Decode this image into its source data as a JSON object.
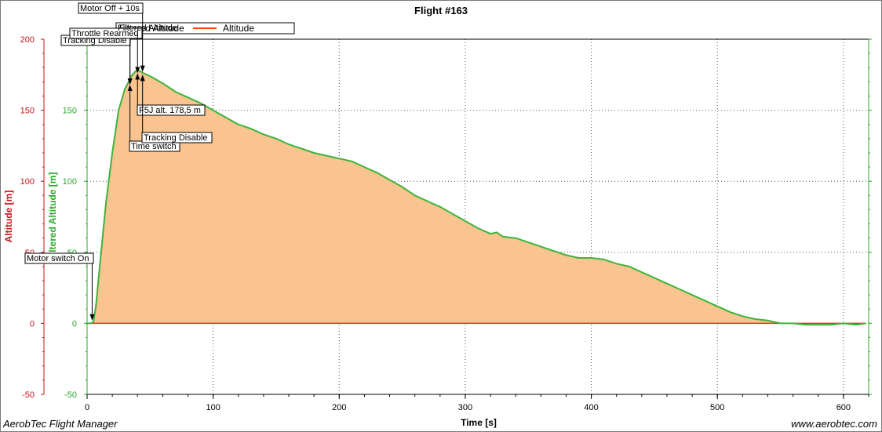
{
  "footer": {
    "left": "AerobTec Flight Manager",
    "right": "www.aerobtec.com"
  },
  "chart_data": {
    "type": "area",
    "title": "Flight #163",
    "xlabel": "Time [s]",
    "y_left_label": "Altitude [m]",
    "y_right_label": "Filtered Altitude [m]",
    "xlim": [
      0,
      620
    ],
    "ylim": [
      -50,
      200
    ],
    "x_ticks": [
      0,
      100,
      200,
      300,
      400,
      500,
      600
    ],
    "y_ticks": [
      -50,
      0,
      50,
      100,
      150,
      200
    ],
    "grid": true,
    "legend": {
      "placement": "top-left",
      "entries": [
        {
          "label": "Filtered Altitude",
          "color": "#3cb43c"
        },
        {
          "label": "Altitude",
          "color": "#ff4a00"
        }
      ]
    },
    "colors": {
      "fill": "#f9c48f",
      "filtered_line": "#3cb43c",
      "zero_line": "#e03020",
      "left_axis": "#c8141e",
      "right_axis": "#2ea82e"
    },
    "series": [
      {
        "name": "Filtered Altitude",
        "x": [
          0,
          3,
          5,
          7,
          10,
          15,
          20,
          25,
          30,
          33,
          35,
          38,
          40,
          43,
          45,
          50,
          60,
          70,
          80,
          90,
          100,
          110,
          120,
          130,
          140,
          150,
          160,
          170,
          180,
          190,
          200,
          210,
          220,
          230,
          240,
          250,
          260,
          270,
          280,
          290,
          300,
          310,
          320,
          325,
          330,
          340,
          350,
          360,
          370,
          380,
          390,
          400,
          410,
          420,
          430,
          440,
          450,
          460,
          470,
          480,
          490,
          500,
          510,
          520,
          530,
          540,
          550,
          560,
          570,
          580,
          585,
          590,
          600,
          610,
          618
        ],
        "values": [
          0,
          0,
          1,
          12,
          40,
          85,
          120,
          150,
          165,
          170,
          174,
          177,
          178.5,
          177,
          176,
          174,
          169,
          163,
          159,
          155,
          150,
          145,
          140,
          137,
          133,
          130,
          126,
          123,
          120,
          118,
          116,
          114,
          110,
          106,
          101,
          96,
          90,
          86,
          82,
          77,
          72,
          67,
          63,
          64,
          61,
          60,
          57,
          54,
          51,
          48,
          46,
          46,
          45,
          42,
          40,
          36,
          32,
          28,
          24,
          20,
          16,
          12,
          8,
          5,
          3,
          2,
          0,
          0,
          -1,
          -1,
          -1,
          -1,
          0,
          -1,
          0
        ]
      },
      {
        "name": "Altitude",
        "x": [
          0,
          618
        ],
        "values": [
          0,
          0
        ]
      }
    ],
    "annotations": [
      {
        "text": "Motor switch On",
        "x": 4,
        "y": 2,
        "label_pos": "above"
      },
      {
        "text": "Tracking Disable",
        "x": 34,
        "y": 168,
        "label_pos": "above"
      },
      {
        "text": "Throttle Rearmed",
        "x": 34,
        "y": 168,
        "label_pos": "above"
      },
      {
        "text": "Filtered Altitude",
        "x": 40,
        "y": 176,
        "label_pos": "above"
      },
      {
        "text": "Motor Off + 10s",
        "x": 44,
        "y": 177,
        "label_pos": "above"
      },
      {
        "text": "Time switch",
        "x": 34,
        "y": 168,
        "label_pos": "below"
      },
      {
        "text": "F5J alt. 178,5 m",
        "x": 40,
        "y": 176,
        "label_pos": "below"
      },
      {
        "text": "Tracking Disable",
        "x": 44,
        "y": 175,
        "label_pos": "below"
      }
    ]
  }
}
